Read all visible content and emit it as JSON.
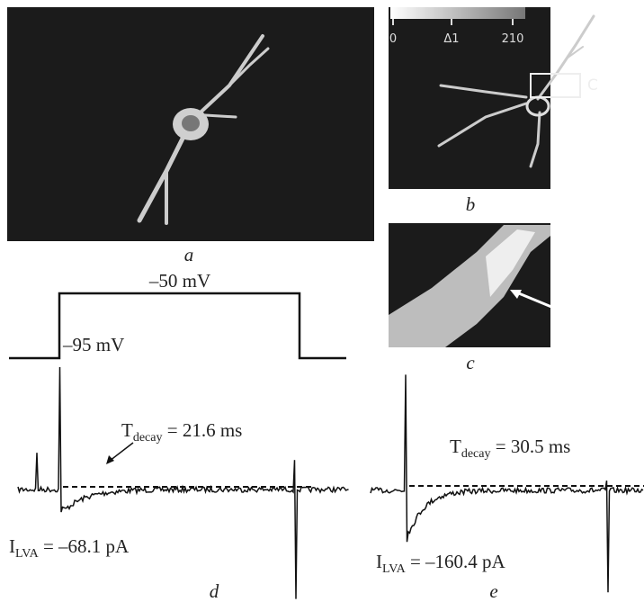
{
  "panels": {
    "a": "a",
    "b": "b",
    "c": "c",
    "d": "d",
    "e": "e"
  },
  "colorbar": {
    "ticks": [
      "0",
      "Δ1",
      "210"
    ]
  },
  "box_label": "C",
  "step": {
    "high": "–50 mV",
    "low": "–95 mV"
  },
  "trace_d": {
    "tau": {
      "main": "T",
      "sub": "decay",
      "rest": " = 21.6 ms"
    },
    "current": {
      "main": "I",
      "sub": "LVA",
      "rest": " = –68.1 pA"
    }
  },
  "trace_e": {
    "tau": {
      "main": "T",
      "sub": "decay",
      "rest": " = 30.5 ms"
    },
    "current": {
      "main": "I",
      "sub": "LVA",
      "rest": " = –160.4 pA"
    }
  }
}
